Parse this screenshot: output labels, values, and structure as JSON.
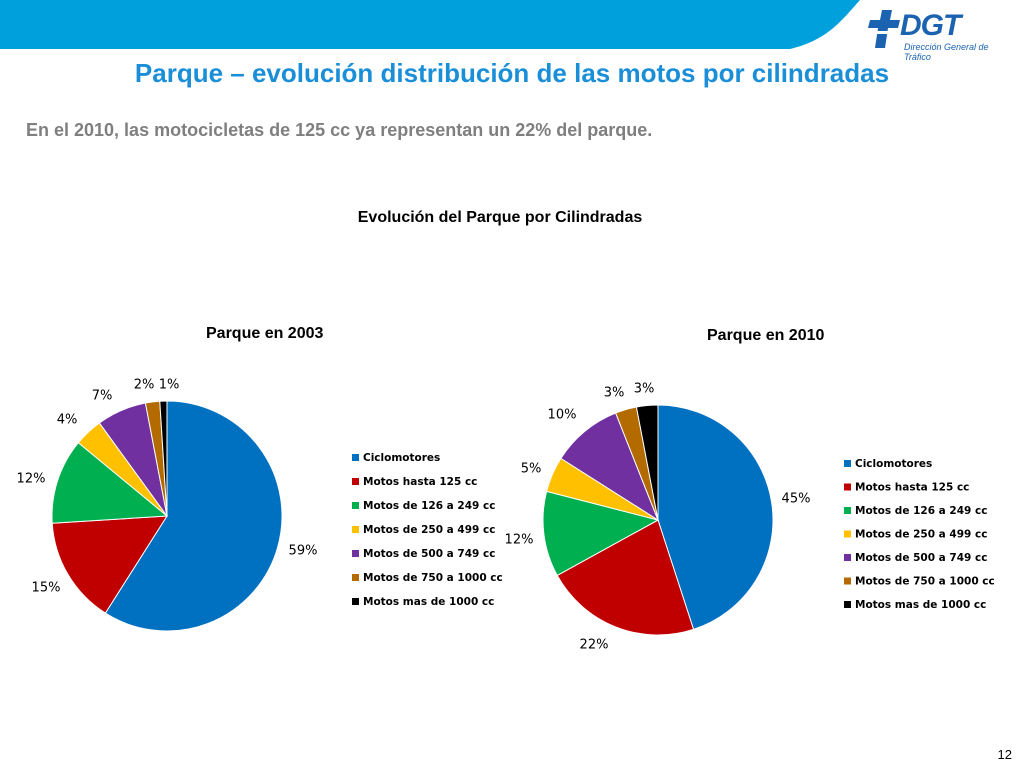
{
  "header": {
    "title": "Parque – evolución distribución de las motos por cilindradas",
    "subtitle": "En el 2010, las motocicletas de 125 cc ya representan un 22% del parque.",
    "logo_text": "DGT",
    "logo_subtext": "Dirección General de Tráfico"
  },
  "chart_title": "Evolución del Parque por Cilindradas",
  "page_number": "12",
  "colors": {
    "banner": "#00a0dc",
    "title": "#1a8fd8",
    "subtitle": "#7f7f7f",
    "logo": "#1b63b0"
  },
  "chart_data": [
    {
      "type": "pie",
      "title": "Parque en 2003",
      "categories": [
        "Ciclomotores",
        "Motos hasta 125 cc",
        "Motos de 126 a 249 cc",
        "Motos de 250 a 499 cc",
        "Motos de 500 a 749 cc",
        "Motos de 750 a 1000 cc",
        "Motos mas de 1000 cc"
      ],
      "values": [
        59,
        15,
        12,
        4,
        7,
        2,
        1
      ],
      "labels": [
        "59%",
        "15%",
        "12%",
        "4%",
        "7%",
        "2%",
        "1%"
      ],
      "colors": [
        "#0070c0",
        "#c00000",
        "#00b050",
        "#ffc000",
        "#7030a0",
        "#b36b00",
        "#000000"
      ],
      "legend": "right"
    },
    {
      "type": "pie",
      "title": "Parque en 2010",
      "categories": [
        "Ciclomotores",
        "Motos hasta 125 cc",
        "Motos de 126 a 249 cc",
        "Motos de 250 a 499 cc",
        "Motos de 500 a 749 cc",
        "Motos de 750 a 1000 cc",
        "Motos mas de 1000 cc"
      ],
      "values": [
        45,
        22,
        12,
        5,
        10,
        3,
        3
      ],
      "labels": [
        "45%",
        "22%",
        "12%",
        "5%",
        "10%",
        "3%",
        "3%"
      ],
      "colors": [
        "#0070c0",
        "#c00000",
        "#00b050",
        "#ffc000",
        "#7030a0",
        "#b36b00",
        "#000000"
      ],
      "legend": "right"
    }
  ]
}
